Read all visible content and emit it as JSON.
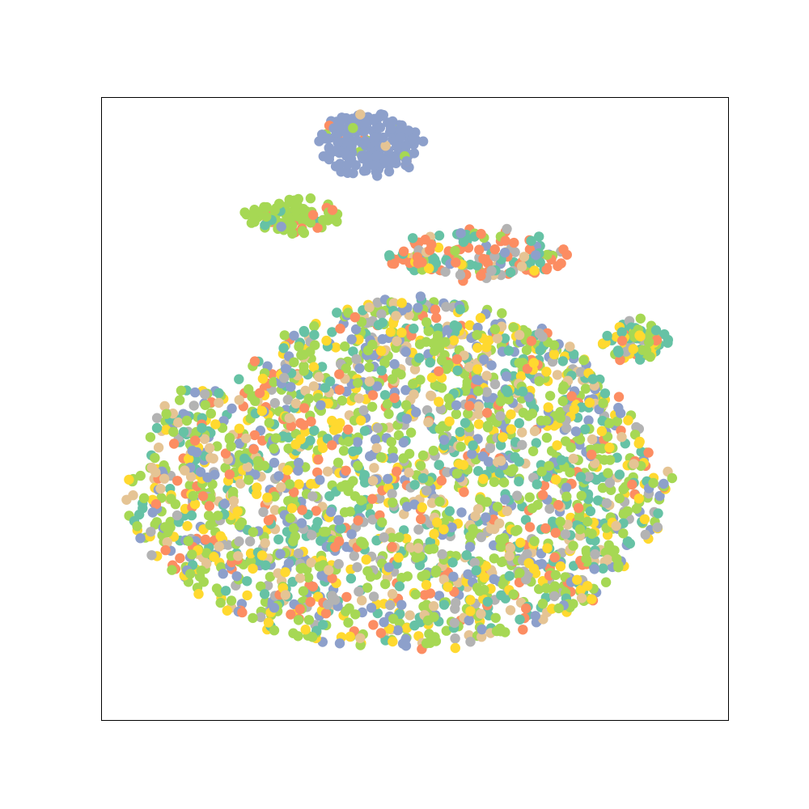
{
  "chart_data": {
    "type": "scatter",
    "title": "",
    "xlabel": "",
    "ylabel": "",
    "xlim": [
      0,
      100
    ],
    "ylim": [
      0,
      100
    ],
    "grid": false,
    "ticks": false,
    "legend": "none",
    "point_count_approx": 2800,
    "palette": {
      "teal": "#66c2a5",
      "orange": "#fc8d62",
      "blue": "#8da0cb",
      "pink": "#e78ac3",
      "green": "#a6d854",
      "yellow": "#ffd92f",
      "tan": "#e5c494",
      "gray": "#b3b3b3"
    },
    "clusters": [
      {
        "name": "top-cluster",
        "cx": 42.5,
        "cy": 92.4,
        "rx": 8.0,
        "ry": 5.0,
        "n": 170,
        "mix": {
          "blue": 0.9,
          "orange": 0.03,
          "green": 0.05,
          "tan": 0.02
        }
      },
      {
        "name": "upper-left-band",
        "cx": 30.5,
        "cy": 80.8,
        "rx": 7.5,
        "ry": 2.6,
        "n": 90,
        "mix": {
          "green": 0.78,
          "orange": 0.12,
          "blue": 0.06,
          "teal": 0.04
        }
      },
      {
        "name": "upper-ridge",
        "cx": 60.0,
        "cy": 74.5,
        "rx": 14.5,
        "ry": 3.8,
        "n": 160,
        "mix": {
          "orange": 0.32,
          "teal": 0.22,
          "green": 0.16,
          "gray": 0.1,
          "tan": 0.08,
          "yellow": 0.06,
          "blue": 0.06
        }
      },
      {
        "name": "main-body",
        "cx": 47.0,
        "cy": 39.5,
        "rx": 44.0,
        "ry": 28.0,
        "n": 2350,
        "mix": {
          "green": 0.3,
          "yellow": 0.14,
          "teal": 0.16,
          "blue": 0.14,
          "tan": 0.1,
          "gray": 0.08,
          "orange": 0.08
        }
      },
      {
        "name": "right-arm",
        "cx": 85.0,
        "cy": 61.0,
        "rx": 5.0,
        "ry": 3.2,
        "n": 80,
        "mix": {
          "green": 0.4,
          "teal": 0.34,
          "yellow": 0.14,
          "orange": 0.06,
          "gray": 0.06
        }
      }
    ]
  }
}
